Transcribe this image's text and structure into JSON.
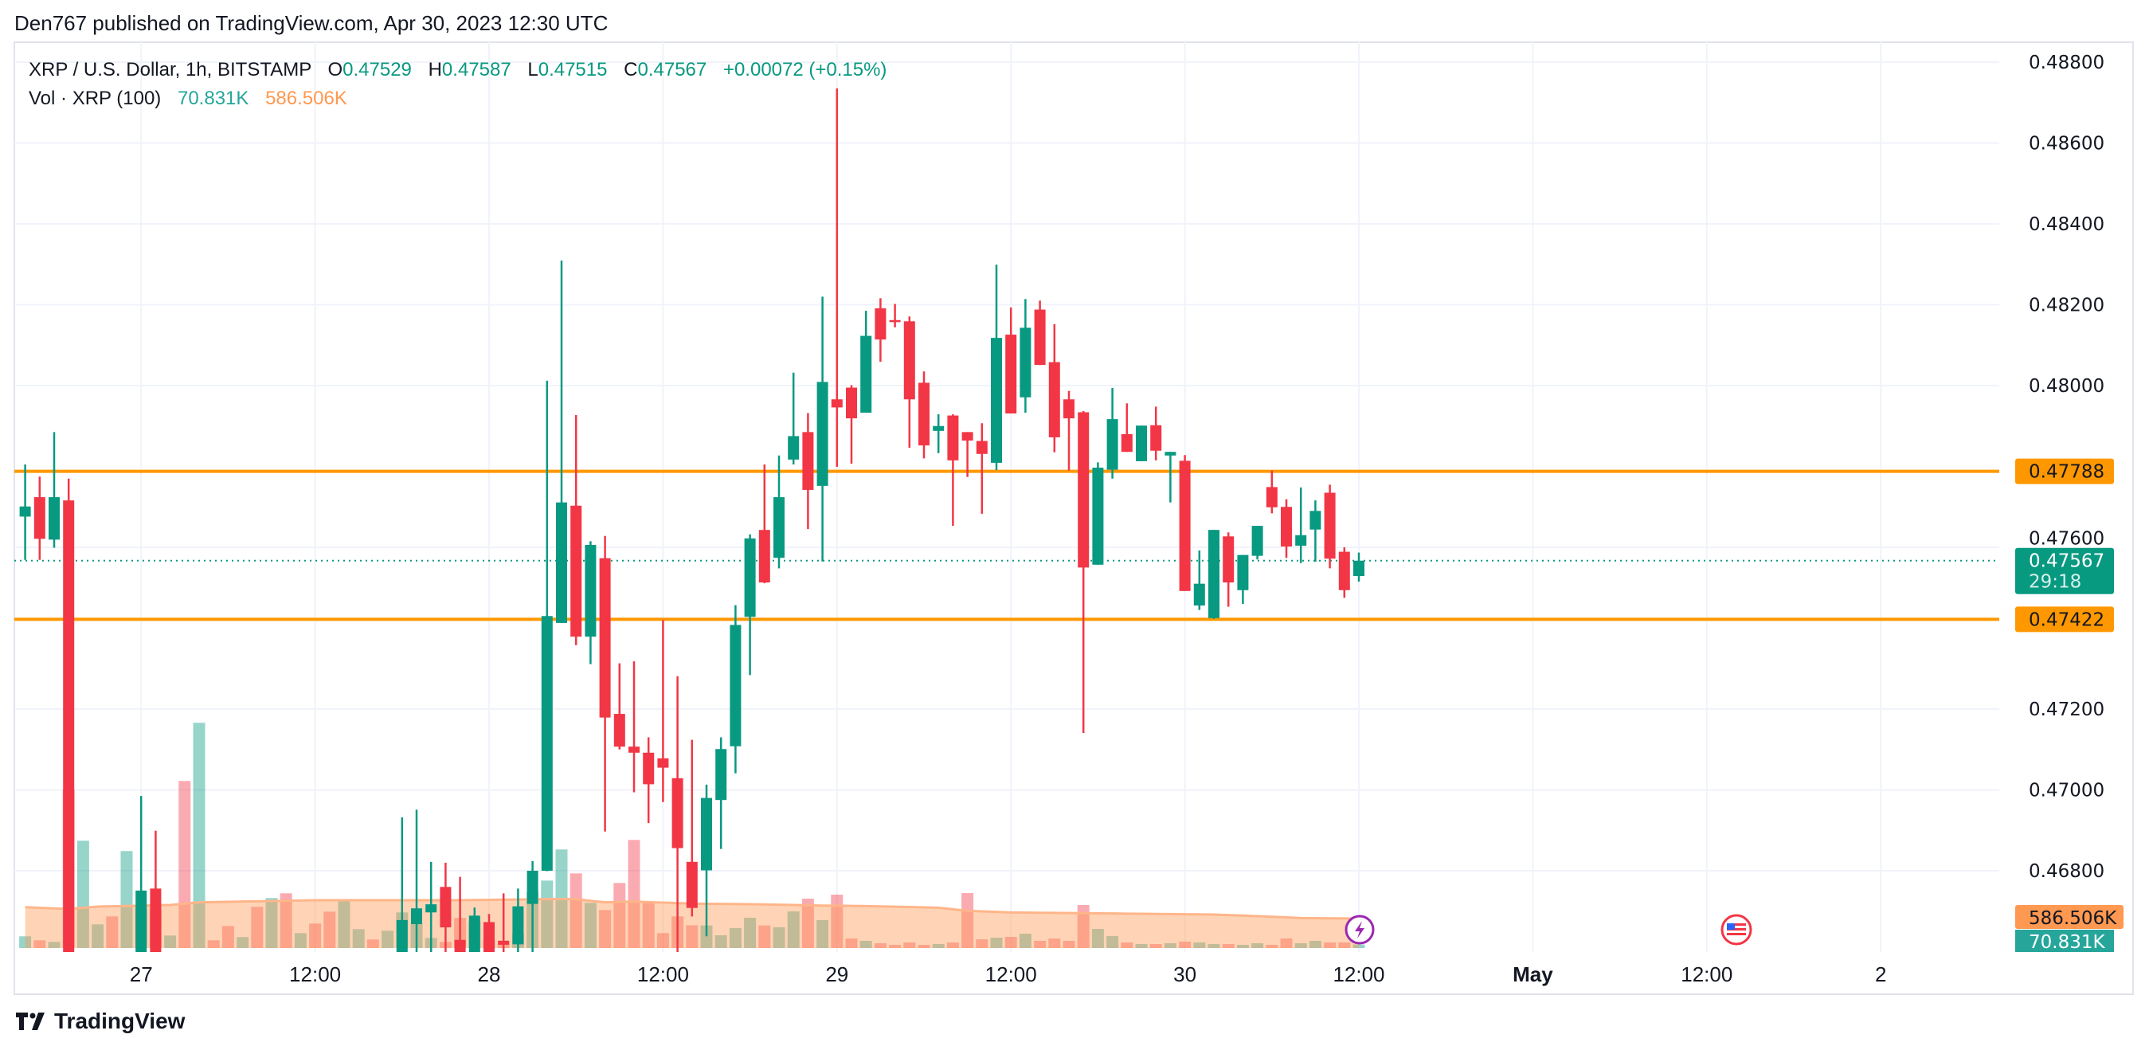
{
  "publisher": "Den767 published on TradingView.com, Apr 30, 2023 12:30 UTC",
  "legend": {
    "symbol": "XRP / U.S. Dollar, 1h, BITSTAMP",
    "o_label": "O",
    "o": "0.47529",
    "h_label": "H",
    "h": "0.47587",
    "l_label": "L",
    "l": "0.47515",
    "c_label": "C",
    "c": "0.47567",
    "change": "+0.00072 (+0.15%)",
    "vol_title": "Vol · XRP (100)",
    "vol_value": "70.831K",
    "vol_ma_value": "586.506K"
  },
  "logo": {
    "mark": "TV",
    "text": "TradingView"
  },
  "colors": {
    "up": "#089981",
    "down": "#F23645",
    "level": "#FF9800",
    "vol_ma": "#FF9850",
    "vol_label": "#26A69A",
    "marker": "#9C27B0"
  },
  "chart_data": {
    "type": "candlestick",
    "symbol": "XRP / U.S. Dollar",
    "interval": "1h",
    "ylim": [
      0.466,
      0.4885
    ],
    "grid": true,
    "y_ticks": [
      "0.48800",
      "0.48600",
      "0.48400",
      "0.48200",
      "0.48000",
      "0.47600",
      "0.47200",
      "0.47000",
      "0.46800"
    ],
    "x_ticks": [
      {
        "label": "27",
        "bold": false
      },
      {
        "label": "12:00",
        "bold": false
      },
      {
        "label": "28",
        "bold": false
      },
      {
        "label": "12:00",
        "bold": false
      },
      {
        "label": "29",
        "bold": false
      },
      {
        "label": "12:00",
        "bold": false
      },
      {
        "label": "30",
        "bold": false
      },
      {
        "label": "12:00",
        "bold": false
      },
      {
        "label": "May",
        "bold": true
      },
      {
        "label": "12:00",
        "bold": false
      },
      {
        "label": "2",
        "bold": false
      }
    ],
    "candle_fields": [
      "open",
      "high",
      "low",
      "close",
      "volume_k",
      "direction"
    ],
    "candles": [
      [
        0.47676,
        0.47805,
        0.47569,
        0.47701,
        233,
        "u"
      ],
      [
        0.47724,
        0.47775,
        0.47569,
        0.47621,
        154,
        "d"
      ],
      [
        0.47619,
        0.47885,
        0.47599,
        0.47724,
        122,
        "u"
      ],
      [
        0.47716,
        0.4777,
        null,
        null,
        3149,
        "d"
      ],
      [
        null,
        null,
        null,
        null,
        2135,
        "u"
      ],
      [
        null,
        null,
        null,
        null,
        471,
        "u"
      ],
      [
        null,
        null,
        null,
        null,
        629,
        "d"
      ],
      [
        null,
        null,
        null,
        null,
        1929,
        "u"
      ],
      [
        null,
        0.46985,
        null,
        0.46751,
        793,
        "u"
      ],
      [
        0.46756,
        0.46899,
        null,
        null,
        761,
        "d"
      ],
      [
        null,
        null,
        null,
        null,
        249,
        "u"
      ],
      [
        null,
        null,
        null,
        null,
        3324,
        "d"
      ],
      [
        null,
        null,
        null,
        null,
        4481,
        "u"
      ],
      [
        null,
        null,
        null,
        null,
        154,
        "d"
      ],
      [
        null,
        null,
        null,
        null,
        439,
        "d"
      ],
      [
        null,
        null,
        null,
        null,
        217,
        "u"
      ],
      [
        null,
        null,
        null,
        null,
        819,
        "d"
      ],
      [
        null,
        null,
        null,
        null,
        994,
        "u"
      ],
      [
        null,
        null,
        null,
        null,
        1089,
        "d"
      ],
      [
        null,
        null,
        null,
        null,
        296,
        "u"
      ],
      [
        null,
        null,
        null,
        null,
        487,
        "d"
      ],
      [
        null,
        null,
        null,
        null,
        724,
        "d"
      ],
      [
        null,
        null,
        null,
        null,
        951,
        "u"
      ],
      [
        null,
        null,
        null,
        null,
        376,
        "u"
      ],
      [
        null,
        null,
        null,
        null,
        170,
        "d"
      ],
      [
        null,
        null,
        null,
        null,
        344,
        "u"
      ],
      [
        null,
        0.46932,
        null,
        0.46678,
        708,
        "u"
      ],
      [
        0.46668,
        0.46951,
        null,
        0.46707,
        487,
        "u"
      ],
      [
        0.46697,
        0.46822,
        null,
        0.46717,
        201,
        "u"
      ],
      [
        0.4676,
        0.4682,
        null,
        0.4666,
        122,
        "d"
      ],
      [
        0.46629,
        0.46785,
        null,
        null,
        598,
        "d"
      ],
      [
        null,
        0.46709,
        null,
        0.46689,
        534,
        "u"
      ],
      [
        0.46673,
        0.46693,
        null,
        null,
        159,
        "d"
      ],
      [
        0.46627,
        0.46744,
        null,
        0.46617,
        90,
        "d"
      ],
      [
        0.46618,
        0.46756,
        null,
        0.46712,
        296,
        "u"
      ],
      [
        0.46718,
        0.46824,
        null,
        0.468,
        1121,
        "u"
      ],
      [
        0.468,
        0.48012,
        0.46799,
        0.4743,
        1342,
        "u"
      ],
      [
        0.47413,
        0.48309,
        0.47413,
        0.47711,
        1961,
        "u"
      ],
      [
        0.47703,
        0.47927,
        0.47358,
        0.47379,
        1485,
        "d"
      ],
      [
        0.47379,
        0.47615,
        0.47311,
        0.47606,
        899,
        "u"
      ],
      [
        0.47573,
        0.47628,
        0.46897,
        0.47179,
        756,
        "d"
      ],
      [
        0.47188,
        0.47313,
        0.471,
        0.47107,
        1295,
        "d"
      ],
      [
        0.47107,
        0.47318,
        0.46994,
        0.47092,
        2151,
        "d"
      ],
      [
        0.47092,
        0.4713,
        0.46918,
        0.47014,
        915,
        "d"
      ],
      [
        0.47078,
        0.4742,
        0.4697,
        0.47055,
        296,
        "d"
      ],
      [
        0.47029,
        0.47281,
        null,
        0.46856,
        629,
        "d"
      ],
      [
        0.46822,
        0.47124,
        0.46687,
        0.46708,
        452,
        "d"
      ],
      [
        0.46801,
        0.47013,
        0.46638,
        0.4698,
        449,
        "u"
      ],
      [
        0.46975,
        0.4713,
        0.46854,
        0.47101,
        254,
        "u"
      ],
      [
        0.47108,
        0.47457,
        0.47041,
        0.47408,
        396,
        "u"
      ],
      [
        0.47428,
        0.47632,
        0.47284,
        0.47622,
        602,
        "u"
      ],
      [
        0.47643,
        0.47805,
        0.47511,
        0.47513,
        449,
        "d"
      ],
      [
        0.47574,
        0.47827,
        0.47548,
        0.47724,
        412,
        "u"
      ],
      [
        0.47817,
        0.48032,
        0.47805,
        0.47875,
        729,
        "u"
      ],
      [
        0.47885,
        0.47932,
        0.47645,
        0.47742,
        983,
        "d"
      ],
      [
        0.47752,
        0.4822,
        0.47565,
        0.48009,
        555,
        "u"
      ],
      [
        0.47966,
        0.48735,
        0.47799,
        0.47946,
        1062,
        "d"
      ],
      [
        0.47995,
        0.48001,
        0.47807,
        0.47919,
        190,
        "d"
      ],
      [
        0.47933,
        0.48185,
        0.47933,
        0.48123,
        143,
        "u"
      ],
      [
        0.48191,
        0.48216,
        0.48059,
        0.48114,
        95,
        "d"
      ],
      [
        0.48162,
        0.48202,
        0.48144,
        0.48157,
        63,
        "d"
      ],
      [
        0.48159,
        0.48171,
        0.47846,
        0.47966,
        111,
        "d"
      ],
      [
        0.48007,
        0.48035,
        0.4782,
        0.47852,
        63,
        "d"
      ],
      [
        0.47888,
        0.47929,
        0.47833,
        0.479,
        79,
        "u"
      ],
      [
        0.47926,
        0.47929,
        0.47653,
        0.47815,
        111,
        "d"
      ],
      [
        0.47885,
        0.47885,
        0.47774,
        0.47864,
        1094,
        "d"
      ],
      [
        0.47863,
        0.47907,
        0.47683,
        0.47831,
        174,
        "d"
      ],
      [
        0.47809,
        0.48299,
        0.47791,
        0.48118,
        206,
        "u"
      ],
      [
        0.48126,
        0.48193,
        0.47931,
        0.47931,
        222,
        "d"
      ],
      [
        0.47971,
        0.48214,
        0.47933,
        0.48143,
        285,
        "u"
      ],
      [
        0.48188,
        0.4821,
        0.48051,
        0.48051,
        143,
        "d"
      ],
      [
        0.48058,
        0.48152,
        0.47835,
        0.47872,
        190,
        "d"
      ],
      [
        0.47966,
        0.47987,
        0.4779,
        0.47919,
        143,
        "d"
      ],
      [
        0.47934,
        0.47937,
        0.47141,
        0.4755,
        856,
        "d"
      ],
      [
        0.47557,
        0.4781,
        0.47557,
        0.47797,
        380,
        "u"
      ],
      [
        0.47792,
        0.47994,
        0.4777,
        0.47917,
        238,
        "u"
      ],
      [
        0.4788,
        0.47956,
        0.47836,
        0.47836,
        111,
        "d"
      ],
      [
        0.47813,
        0.47901,
        0.47813,
        0.47901,
        79,
        "u"
      ],
      [
        0.47902,
        0.47948,
        0.47815,
        0.47839,
        79,
        "d"
      ],
      [
        0.47827,
        0.47836,
        0.47711,
        0.47836,
        95,
        "u"
      ],
      [
        0.47814,
        0.47828,
        0.47492,
        0.47492,
        127,
        "d"
      ],
      [
        0.47456,
        0.47592,
        0.47445,
        0.4751,
        111,
        "u"
      ],
      [
        0.47425,
        0.47643,
        0.47423,
        0.47643,
        79,
        "u"
      ],
      [
        0.47627,
        0.47637,
        0.47453,
        0.47513,
        79,
        "d"
      ],
      [
        0.47494,
        0.47581,
        0.4746,
        0.47581,
        63,
        "u"
      ],
      [
        0.47579,
        0.47653,
        0.4757,
        0.47653,
        95,
        "u"
      ],
      [
        0.47749,
        0.4779,
        0.47684,
        0.47699,
        63,
        "d"
      ],
      [
        0.477,
        0.47719,
        0.47574,
        0.47602,
        190,
        "d"
      ],
      [
        0.47604,
        0.47748,
        0.47561,
        0.4763,
        95,
        "u"
      ],
      [
        0.47644,
        0.47716,
        0.47564,
        0.4769,
        143,
        "u"
      ],
      [
        0.47735,
        0.47755,
        0.47548,
        0.47572,
        111,
        "d"
      ],
      [
        0.47589,
        0.476,
        0.47475,
        0.47494,
        111,
        "d"
      ],
      [
        0.47529,
        0.47587,
        0.47515,
        0.47567,
        70.831,
        "u"
      ]
    ],
    "volume_ma_k": [
      813,
      801,
      789,
      777,
      800,
      824,
      830,
      837,
      843,
      850,
      856,
      882,
      909,
      914,
      920,
      925,
      930,
      935,
      940,
      946,
      951,
      951,
      951,
      951,
      951,
      951,
      951,
      951,
      951,
      951,
      951,
      955,
      958,
      962,
      965,
      969,
      972,
      972,
      972,
      940,
      909,
      917,
      925,
      914,
      904,
      893,
      883,
      880,
      877,
      875,
      872,
      867,
      861,
      856,
      850,
      845,
      842,
      838,
      835,
      829,
      822,
      816,
      809,
      803,
      771,
      740,
      729,
      719,
      708,
      705,
      702,
      699,
      696,
      693,
      690,
      687,
      684,
      681,
      678,
      675,
      672,
      669,
      666,
      655,
      645,
      634,
      623,
      610,
      597,
      594,
      591,
      588,
      586.506
    ],
    "horizontal_lines": [
      {
        "price": 0.47788,
        "label": "0.47788",
        "color": "#FF9800"
      },
      {
        "price": 0.47422,
        "label": "0.47422",
        "color": "#FF9800"
      }
    ],
    "last_price": {
      "price": 0.47567,
      "label": "0.47567",
      "countdown": "29:18"
    },
    "volume_labels": {
      "ma": "586.506K",
      "last": "70.831K"
    },
    "markers": [
      {
        "icon": "lightning-icon"
      },
      {
        "icon": "us-flag-icon"
      }
    ]
  }
}
